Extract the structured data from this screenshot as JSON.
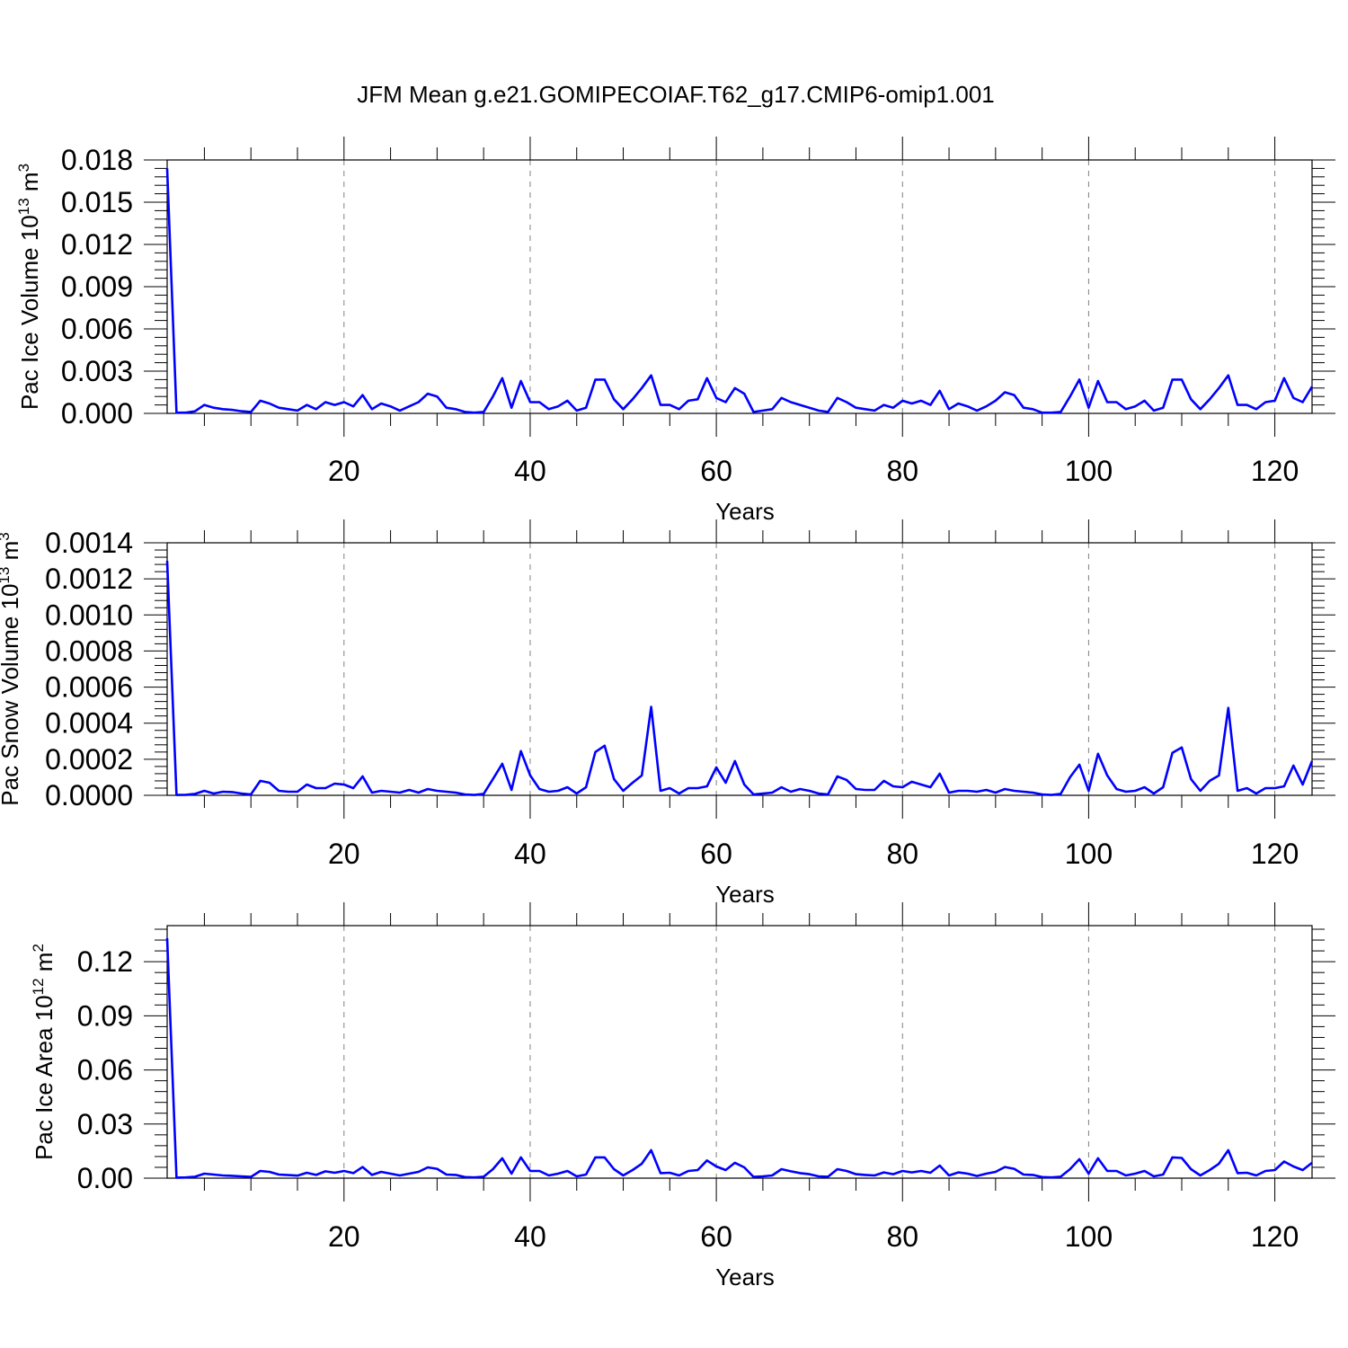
{
  "title": "JFM Mean g.e21.GOMIPECOIAF.T62_g17.CMIP6-omip1.001",
  "colors": {
    "series": "#0000ff",
    "axis": "#000000",
    "grid": "#808080"
  },
  "chart_data": [
    {
      "type": "line",
      "xlabel": "Years",
      "ylabel": {
        "prefix": "Pac Ice Volume 10",
        "exp": "13",
        "unit": " m",
        "unit_exp": "3"
      },
      "xlim": [
        1,
        124
      ],
      "ylim": [
        0,
        0.018
      ],
      "xticks": [
        20,
        40,
        60,
        80,
        100,
        120
      ],
      "xtick_labels": [
        "20",
        "40",
        "60",
        "80",
        "100",
        "120"
      ],
      "yticks": [
        0,
        0.003,
        0.006,
        0.009,
        0.012,
        0.015,
        0.018
      ],
      "ytick_labels": [
        "0.000",
        "0.003",
        "0.006",
        "0.009",
        "0.012",
        "0.015",
        "0.018"
      ],
      "grid": "vertical dashed at major x ticks",
      "x": [
        1,
        2,
        3,
        4,
        5,
        6,
        7,
        8,
        9,
        10,
        11,
        12,
        13,
        14,
        15,
        16,
        17,
        18,
        19,
        20,
        21,
        22,
        23,
        24,
        25,
        26,
        27,
        28,
        29,
        30,
        31,
        32,
        33,
        34,
        35,
        36,
        37,
        38,
        39,
        40,
        41,
        42,
        43,
        44,
        45,
        46,
        47,
        48,
        49,
        50,
        51,
        52,
        53,
        54,
        55,
        56,
        57,
        58,
        59,
        60,
        61,
        62,
        63,
        64,
        65,
        66,
        67,
        68,
        69,
        70,
        71,
        72,
        73,
        74,
        75,
        76,
        77,
        78,
        79,
        80,
        81,
        82,
        83,
        84,
        85,
        86,
        87,
        88,
        89,
        90,
        91,
        92,
        93,
        94,
        95,
        96,
        97,
        98,
        99,
        100,
        101,
        102,
        103,
        104,
        105,
        106,
        107,
        108,
        109,
        110,
        111,
        112,
        113,
        114,
        115,
        116,
        117,
        118,
        119,
        120,
        121,
        122,
        123,
        124
      ],
      "values": [
        0.0174,
        5e-05,
        5e-05,
        0.00015,
        0.0006,
        0.0004,
        0.0003,
        0.00025,
        0.00015,
        0.0001,
        0.0009,
        0.0007,
        0.0004,
        0.0003,
        0.0002,
        0.0006,
        0.0003,
        0.0008,
        0.0006,
        0.0008,
        0.0005,
        0.0013,
        0.0003,
        0.0007,
        0.0005,
        0.0002,
        0.0005,
        0.0008,
        0.0014,
        0.0012,
        0.0004,
        0.0003,
        0.0001,
        5e-05,
        0.0001,
        0.0012,
        0.0025,
        0.0004,
        0.0023,
        0.0008,
        0.0008,
        0.0003,
        0.0005,
        0.0009,
        0.0002,
        0.0004,
        0.0024,
        0.0024,
        0.001,
        0.0003,
        0.001,
        0.0018,
        0.0027,
        0.0006,
        0.0006,
        0.0003,
        0.0009,
        0.001,
        0.0025,
        0.0011,
        0.0008,
        0.0018,
        0.0014,
        0.0001,
        0.0002,
        0.0003,
        0.0011,
        0.0008,
        0.0006,
        0.0004,
        0.0002,
        0.0001,
        0.0011,
        0.0008,
        0.0004,
        0.0003,
        0.0002,
        0.0006,
        0.0004,
        0.0009,
        0.0007,
        0.0009,
        0.0006,
        0.0016,
        0.0003,
        0.0007,
        0.0005,
        0.0002,
        0.0005,
        0.0009,
        0.0015,
        0.0013,
        0.0004,
        0.0003,
        5e-05,
        5e-05,
        0.0001,
        0.0012,
        0.0024,
        0.0004,
        0.0023,
        0.0008,
        0.0008,
        0.0003,
        0.0005,
        0.0009,
        0.0002,
        0.0004,
        0.0024,
        0.0024,
        0.001,
        0.0003,
        0.001,
        0.0018,
        0.0027,
        0.0006,
        0.0006,
        0.0003,
        0.0008,
        0.0009,
        0.0025,
        0.0011,
        0.0008,
        0.0019
      ]
    },
    {
      "type": "line",
      "xlabel": "Years",
      "ylabel": {
        "prefix": "Pac Snow Volume 10",
        "exp": "13",
        "unit": " m",
        "unit_exp": "3"
      },
      "xlim": [
        1,
        124
      ],
      "ylim": [
        0,
        0.0014
      ],
      "xticks": [
        20,
        40,
        60,
        80,
        100,
        120
      ],
      "xtick_labels": [
        "20",
        "40",
        "60",
        "80",
        "100",
        "120"
      ],
      "yticks": [
        0,
        0.0002,
        0.0004,
        0.0006,
        0.0008,
        0.001,
        0.0012,
        0.0014
      ],
      "ytick_labels": [
        "0.0000",
        "0.0002",
        "0.0004",
        "0.0006",
        "0.0008",
        "0.0010",
        "0.0012",
        "0.0014"
      ],
      "grid": "vertical dashed at major x ticks",
      "x": [
        1,
        2,
        3,
        4,
        5,
        6,
        7,
        8,
        9,
        10,
        11,
        12,
        13,
        14,
        15,
        16,
        17,
        18,
        19,
        20,
        21,
        22,
        23,
        24,
        25,
        26,
        27,
        28,
        29,
        30,
        31,
        32,
        33,
        34,
        35,
        36,
        37,
        38,
        39,
        40,
        41,
        42,
        43,
        44,
        45,
        46,
        47,
        48,
        49,
        50,
        51,
        52,
        53,
        54,
        55,
        56,
        57,
        58,
        59,
        60,
        61,
        62,
        63,
        64,
        65,
        66,
        67,
        68,
        69,
        70,
        71,
        72,
        73,
        74,
        75,
        76,
        77,
        78,
        79,
        80,
        81,
        82,
        83,
        84,
        85,
        86,
        87,
        88,
        89,
        90,
        91,
        92,
        93,
        94,
        95,
        96,
        97,
        98,
        99,
        100,
        101,
        102,
        103,
        104,
        105,
        106,
        107,
        108,
        109,
        110,
        111,
        112,
        113,
        114,
        115,
        116,
        117,
        118,
        119,
        120,
        121,
        122,
        123,
        124
      ],
      "values": [
        0.0013,
        2e-06,
        3e-06,
        8e-06,
        2.5e-05,
        1e-05,
        2e-05,
        1.8e-05,
        1e-05,
        5e-06,
        8e-05,
        7e-05,
        2.5e-05,
        2e-05,
        2e-05,
        6e-05,
        4e-05,
        4e-05,
        6.5e-05,
        6e-05,
        4e-05,
        0.000105,
        1.5e-05,
        2.5e-05,
        2e-05,
        1.5e-05,
        3e-05,
        1.5e-05,
        3.5e-05,
        2.5e-05,
        2e-05,
        1.5e-05,
        5e-06,
        2e-06,
        8e-06,
        9e-05,
        0.000175,
        3e-05,
        0.000245,
        0.00011,
        3.5e-05,
        2e-05,
        2.5e-05,
        4.5e-05,
        1e-05,
        4.5e-05,
        0.00024,
        0.000275,
        9e-05,
        2.5e-05,
        7e-05,
        0.00011,
        0.00049,
        2.5e-05,
        4e-05,
        1e-05,
        4e-05,
        4e-05,
        5e-05,
        0.000155,
        7e-05,
        0.00019,
        6e-05,
        5e-06,
        1e-05,
        1.5e-05,
        4.5e-05,
        2e-05,
        3.5e-05,
        2.5e-05,
        1e-05,
        5e-06,
        0.000105,
        8.5e-05,
        3.5e-05,
        3e-05,
        3e-05,
        8e-05,
        5e-05,
        4.5e-05,
        7.5e-05,
        6e-05,
        4.5e-05,
        0.00012,
        1.5e-05,
        2.5e-05,
        2.5e-05,
        2e-05,
        3e-05,
        1.5e-05,
        3.5e-05,
        2.5e-05,
        2e-05,
        1.5e-05,
        5e-06,
        2e-06,
        8e-06,
        0.0001,
        0.00017,
        2.5e-05,
        0.00023,
        0.00011,
        3.5e-05,
        2e-05,
        2.5e-05,
        4.5e-05,
        1e-05,
        4.5e-05,
        0.000235,
        0.000265,
        9e-05,
        2.5e-05,
        8e-05,
        0.00011,
        0.000485,
        2.5e-05,
        4e-05,
        1e-05,
        4e-05,
        4e-05,
        5e-05,
        0.000165,
        6e-05,
        0.00019
      ]
    },
    {
      "type": "line",
      "xlabel": "Years",
      "ylabel": {
        "prefix": "Pac Ice Area 10",
        "exp": "12",
        "unit": " m",
        "unit_exp": "2"
      },
      "xlim": [
        1,
        124
      ],
      "ylim": [
        0,
        0.14
      ],
      "xticks": [
        20,
        40,
        60,
        80,
        100,
        120
      ],
      "xtick_labels": [
        "20",
        "40",
        "60",
        "80",
        "100",
        "120"
      ],
      "yticks": [
        0,
        0.03,
        0.06,
        0.09,
        0.12
      ],
      "ytick_labels": [
        "0.00",
        "0.03",
        "0.06",
        "0.09",
        "0.12"
      ],
      "grid": "vertical dashed at major x ticks",
      "x": [
        1,
        2,
        3,
        4,
        5,
        6,
        7,
        8,
        9,
        10,
        11,
        12,
        13,
        14,
        15,
        16,
        17,
        18,
        19,
        20,
        21,
        22,
        23,
        24,
        25,
        26,
        27,
        28,
        29,
        30,
        31,
        32,
        33,
        34,
        35,
        36,
        37,
        38,
        39,
        40,
        41,
        42,
        43,
        44,
        45,
        46,
        47,
        48,
        49,
        50,
        51,
        52,
        53,
        54,
        55,
        56,
        57,
        58,
        59,
        60,
        61,
        62,
        63,
        64,
        65,
        66,
        67,
        68,
        69,
        70,
        71,
        72,
        73,
        74,
        75,
        76,
        77,
        78,
        79,
        80,
        81,
        82,
        83,
        84,
        85,
        86,
        87,
        88,
        89,
        90,
        91,
        92,
        93,
        94,
        95,
        96,
        97,
        98,
        99,
        100,
        101,
        102,
        103,
        104,
        105,
        106,
        107,
        108,
        109,
        110,
        111,
        112,
        113,
        114,
        115,
        116,
        117,
        118,
        119,
        120,
        121,
        122,
        123,
        124
      ],
      "values": [
        0.133,
        0.0003,
        0.0004,
        0.0008,
        0.0025,
        0.002,
        0.0015,
        0.0013,
        0.001,
        0.0007,
        0.004,
        0.0035,
        0.002,
        0.0017,
        0.0014,
        0.003,
        0.0018,
        0.0038,
        0.003,
        0.004,
        0.0028,
        0.0062,
        0.0018,
        0.0035,
        0.0025,
        0.0015,
        0.0025,
        0.0035,
        0.006,
        0.0052,
        0.002,
        0.0018,
        0.0006,
        0.0004,
        0.0008,
        0.005,
        0.011,
        0.0025,
        0.0115,
        0.004,
        0.004,
        0.0015,
        0.0025,
        0.004,
        0.001,
        0.002,
        0.0115,
        0.0115,
        0.005,
        0.0015,
        0.0045,
        0.008,
        0.0155,
        0.0028,
        0.003,
        0.0015,
        0.004,
        0.0045,
        0.0098,
        0.0065,
        0.0045,
        0.0085,
        0.006,
        0.0007,
        0.001,
        0.0015,
        0.005,
        0.0038,
        0.0028,
        0.0022,
        0.001,
        0.0008,
        0.005,
        0.004,
        0.0022,
        0.0018,
        0.0015,
        0.0032,
        0.0022,
        0.004,
        0.0032,
        0.004,
        0.003,
        0.007,
        0.0015,
        0.0032,
        0.0025,
        0.0012,
        0.0025,
        0.0035,
        0.0062,
        0.0052,
        0.002,
        0.0018,
        0.0006,
        0.0004,
        0.0008,
        0.005,
        0.0105,
        0.0025,
        0.011,
        0.004,
        0.004,
        0.0015,
        0.0025,
        0.004,
        0.001,
        0.002,
        0.0115,
        0.0112,
        0.005,
        0.0015,
        0.0045,
        0.008,
        0.0155,
        0.0028,
        0.003,
        0.0015,
        0.004,
        0.0045,
        0.0092,
        0.0065,
        0.0045,
        0.0085
      ]
    }
  ]
}
